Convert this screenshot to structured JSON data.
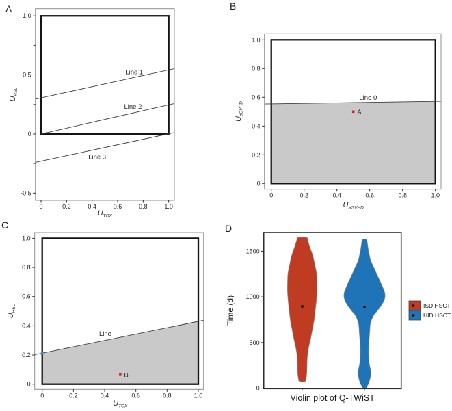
{
  "colors": {
    "violin_red": "#bf3b22",
    "violin_blue": "#1f73b7",
    "shade_gray": "#c9c9c9",
    "frame_gray": "#909090",
    "square_black": "#141414",
    "thin_line": "#3c3c3c",
    "point_red": "#e01f1f",
    "point_blue": "#2e86e0",
    "text_dark": "#262626",
    "median_dot": "#000000"
  },
  "chart_data": [
    {
      "panel_label": "A",
      "type": "line",
      "xlabel": "U_TOX",
      "ylabel": "U_REL",
      "xlim": [
        -0.0445,
        1.0445
      ],
      "ylim": [
        -0.562,
        1.061
      ],
      "x_ticks": [
        {
          "v": 0,
          "t": "0"
        },
        {
          "v": 0.2,
          "t": "0.2"
        },
        {
          "v": 0.4,
          "t": "0.4"
        },
        {
          "v": 0.6,
          "t": "0.6"
        },
        {
          "v": 0.8,
          "t": "0.8"
        },
        {
          "v": 1.0,
          "t": "1.0"
        }
      ],
      "y_ticks": [
        {
          "v": -0.5,
          "t": "-0.5"
        },
        {
          "v": -0.25,
          "t": ""
        },
        {
          "v": 0,
          "t": "0"
        },
        {
          "v": 0.25,
          "t": ""
        },
        {
          "v": 0.5,
          "t": "0.5"
        },
        {
          "v": 0.75,
          "t": ""
        },
        {
          "v": 1.0,
          "t": "1.0"
        }
      ],
      "unit_square": [
        0,
        0,
        1,
        1
      ],
      "lines": [
        {
          "name": "Line 1",
          "points": [
            [
              -0.0445,
              0.295
            ],
            [
              1.0445,
              0.553
            ]
          ],
          "label_at": [
            0.73,
            0.527
          ]
        },
        {
          "name": "Line 2",
          "points": [
            [
              0.0,
              0.0
            ],
            [
              1.0445,
              0.258
            ]
          ],
          "label_at": [
            0.72,
            0.235
          ]
        },
        {
          "name": "Line 3",
          "points": [
            [
              -0.0445,
              -0.24
            ],
            [
              1.0445,
              0.012
            ]
          ],
          "label_at": [
            0.44,
            -0.19
          ]
        }
      ],
      "shaded_region": null,
      "points": []
    },
    {
      "panel_label": "B",
      "type": "line",
      "xlabel": "U_aGVHD",
      "ylabel": "U_cGVHD",
      "xlim": [
        -0.0417,
        1.0346
      ],
      "ylim": [
        -0.04,
        1.0429
      ],
      "x_ticks": [
        {
          "v": 0,
          "t": "0"
        },
        {
          "v": 0.2,
          "t": "0.2"
        },
        {
          "v": 0.4,
          "t": "0.4"
        },
        {
          "v": 0.6,
          "t": "0.6"
        },
        {
          "v": 0.8,
          "t": "0.8"
        },
        {
          "v": 1.0,
          "t": "1.0"
        }
      ],
      "y_ticks": [
        {
          "v": 0,
          "t": "0"
        },
        {
          "v": 0.2,
          "t": "0.2"
        },
        {
          "v": 0.4,
          "t": "0.4"
        },
        {
          "v": 0.6,
          "t": "0.6"
        },
        {
          "v": 0.8,
          "t": "0.8"
        },
        {
          "v": 1.0,
          "t": "1.0"
        }
      ],
      "unit_square": [
        0,
        0,
        1,
        1
      ],
      "lines": [
        {
          "name": "Line 0",
          "points": [
            [
              -0.0417,
              0.5535
            ],
            [
              1.0346,
              0.5725
            ]
          ],
          "label_at": [
            0.59,
            0.598
          ]
        }
      ],
      "shaded_region": [
        [
          0,
          0
        ],
        [
          1,
          0
        ],
        [
          1,
          0.5715
        ],
        [
          0,
          0.5535
        ]
      ],
      "points": [
        {
          "label": "A",
          "x": 0.5,
          "y": 0.5,
          "color_key": "point_red"
        }
      ]
    },
    {
      "panel_label": "C",
      "type": "line",
      "xlabel": "U_TOX",
      "ylabel": "U_REL",
      "xlim": [
        -0.0482,
        1.0337
      ],
      "ylim": [
        -0.0356,
        1.0393
      ],
      "x_ticks": [
        {
          "v": 0,
          "t": "0"
        },
        {
          "v": 0.2,
          "t": "0.2"
        },
        {
          "v": 0.4,
          "t": "0.4"
        },
        {
          "v": 0.6,
          "t": "0.6"
        },
        {
          "v": 0.8,
          "t": "0.8"
        },
        {
          "v": 1.0,
          "t": "1.0"
        }
      ],
      "y_ticks": [
        {
          "v": 0,
          "t": "0"
        },
        {
          "v": 0.2,
          "t": "0.2"
        },
        {
          "v": 0.4,
          "t": "0.4"
        },
        {
          "v": 0.6,
          "t": "0.6"
        },
        {
          "v": 0.8,
          "t": "0.8"
        },
        {
          "v": 1.0,
          "t": "1.0"
        }
      ],
      "unit_square": [
        0,
        0,
        1,
        1
      ],
      "lines": [
        {
          "name": "Line",
          "points": [
            [
              -0.0482,
              0.2025
            ],
            [
              1.0337,
              0.4375
            ]
          ],
          "label_at": [
            0.404,
            0.348
          ]
        }
      ],
      "shaded_region": [
        [
          0,
          0
        ],
        [
          1,
          0
        ],
        [
          1,
          0.4305
        ],
        [
          0,
          0.213
        ]
      ],
      "points": [
        {
          "label": "",
          "x": 0.0,
          "y": 0.212,
          "color_key": "point_blue"
        },
        {
          "label": "B",
          "x": 0.5,
          "y": 0.065,
          "color_key": "point_red"
        }
      ]
    },
    {
      "panel_label": "D",
      "type": "violin",
      "title": "Violin plot of Q-TWiST",
      "ylabel": "Time (d)",
      "xlim": [
        0,
        1
      ],
      "ylim": [
        -5,
        1705
      ],
      "y_ticks": [
        {
          "v": 0,
          "t": "0"
        },
        {
          "v": 500,
          "t": "500"
        },
        {
          "v": 1000,
          "t": "1000"
        },
        {
          "v": 1500,
          "t": "1500"
        }
      ],
      "series": [
        {
          "name": "ISD HSCT",
          "color_key": "violin_red",
          "center": 0.28,
          "median": 896,
          "range": [
            75,
            1658
          ],
          "profile": [
            [
              75,
              4
            ],
            [
              100,
              5.5
            ],
            [
              150,
              6.5
            ],
            [
              250,
              7
            ],
            [
              350,
              7.5
            ],
            [
              450,
              9.5
            ],
            [
              550,
              12.5
            ],
            [
              650,
              15
            ],
            [
              750,
              17.5
            ],
            [
              850,
              19
            ],
            [
              950,
              20.5
            ],
            [
              1050,
              21.5
            ],
            [
              1150,
              21.5
            ],
            [
              1250,
              21
            ],
            [
              1350,
              18.5
            ],
            [
              1450,
              15.5
            ],
            [
              1550,
              11
            ],
            [
              1620,
              8
            ],
            [
              1650,
              6.5
            ]
          ]
        },
        {
          "name": "HID HSCT",
          "color_key": "violin_blue",
          "center": 0.733,
          "median": 891,
          "range": [
            5,
            1639
          ],
          "profile": [
            [
              5,
              3
            ],
            [
              30,
              4.5
            ],
            [
              50,
              6
            ],
            [
              100,
              8
            ],
            [
              150,
              9.5
            ],
            [
              200,
              9
            ],
            [
              250,
              7.5
            ],
            [
              300,
              6.5
            ],
            [
              400,
              6
            ],
            [
              500,
              6.5
            ],
            [
              600,
              7.5
            ],
            [
              700,
              8.5
            ],
            [
              750,
              10.5
            ],
            [
              800,
              13.5
            ],
            [
              850,
              19
            ],
            [
              900,
              24
            ],
            [
              950,
              28
            ],
            [
              1000,
              30
            ],
            [
              1050,
              29.5
            ],
            [
              1100,
              27
            ],
            [
              1200,
              21
            ],
            [
              1300,
              15
            ],
            [
              1400,
              9
            ],
            [
              1450,
              7.5
            ],
            [
              1500,
              6
            ],
            [
              1550,
              5
            ],
            [
              1600,
              4
            ],
            [
              1630,
              2.5
            ]
          ]
        }
      ],
      "legend": {
        "entries": [
          {
            "label": "ISD HSCT",
            "color_key": "violin_red"
          },
          {
            "label": "HID HSCT",
            "color_key": "violin_blue"
          }
        ]
      }
    }
  ]
}
